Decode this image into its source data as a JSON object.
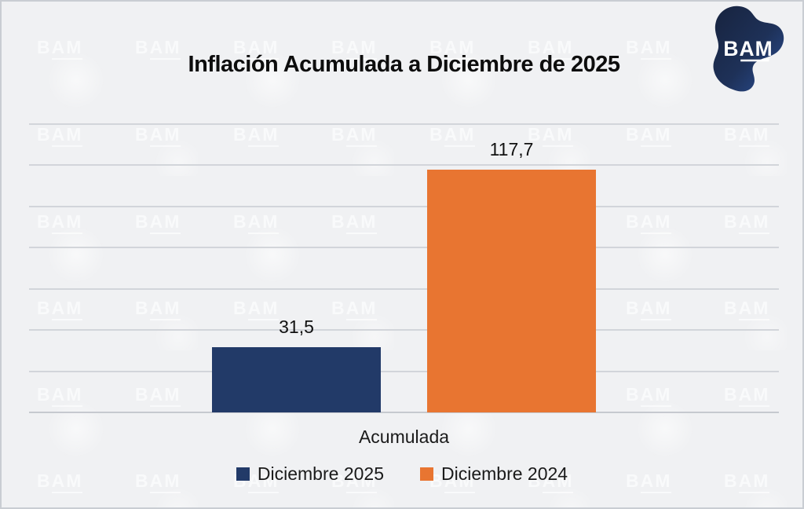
{
  "logo": {
    "text": "BAM"
  },
  "watermark": {
    "text": "BAM"
  },
  "chart_data": {
    "type": "bar",
    "title": "Inflación Acumulada a Diciembre de 2025",
    "categories": [
      "Acumulada"
    ],
    "series": [
      {
        "name": "Diciembre 2025",
        "value": 31.5,
        "label": "31,5",
        "color": "#223a68"
      },
      {
        "name": "Diciembre 2024",
        "value": 117.7,
        "label": "117,7",
        "color": "#e87531"
      }
    ],
    "xlabel": "Acumulada",
    "ylabel": "",
    "ylim": [
      0,
      140
    ],
    "grid_step": 20,
    "grid": true,
    "legend_position": "bottom",
    "colors": {
      "background": "#f0f1f3",
      "gridline": "#d2d5da",
      "text": "#111111"
    }
  }
}
